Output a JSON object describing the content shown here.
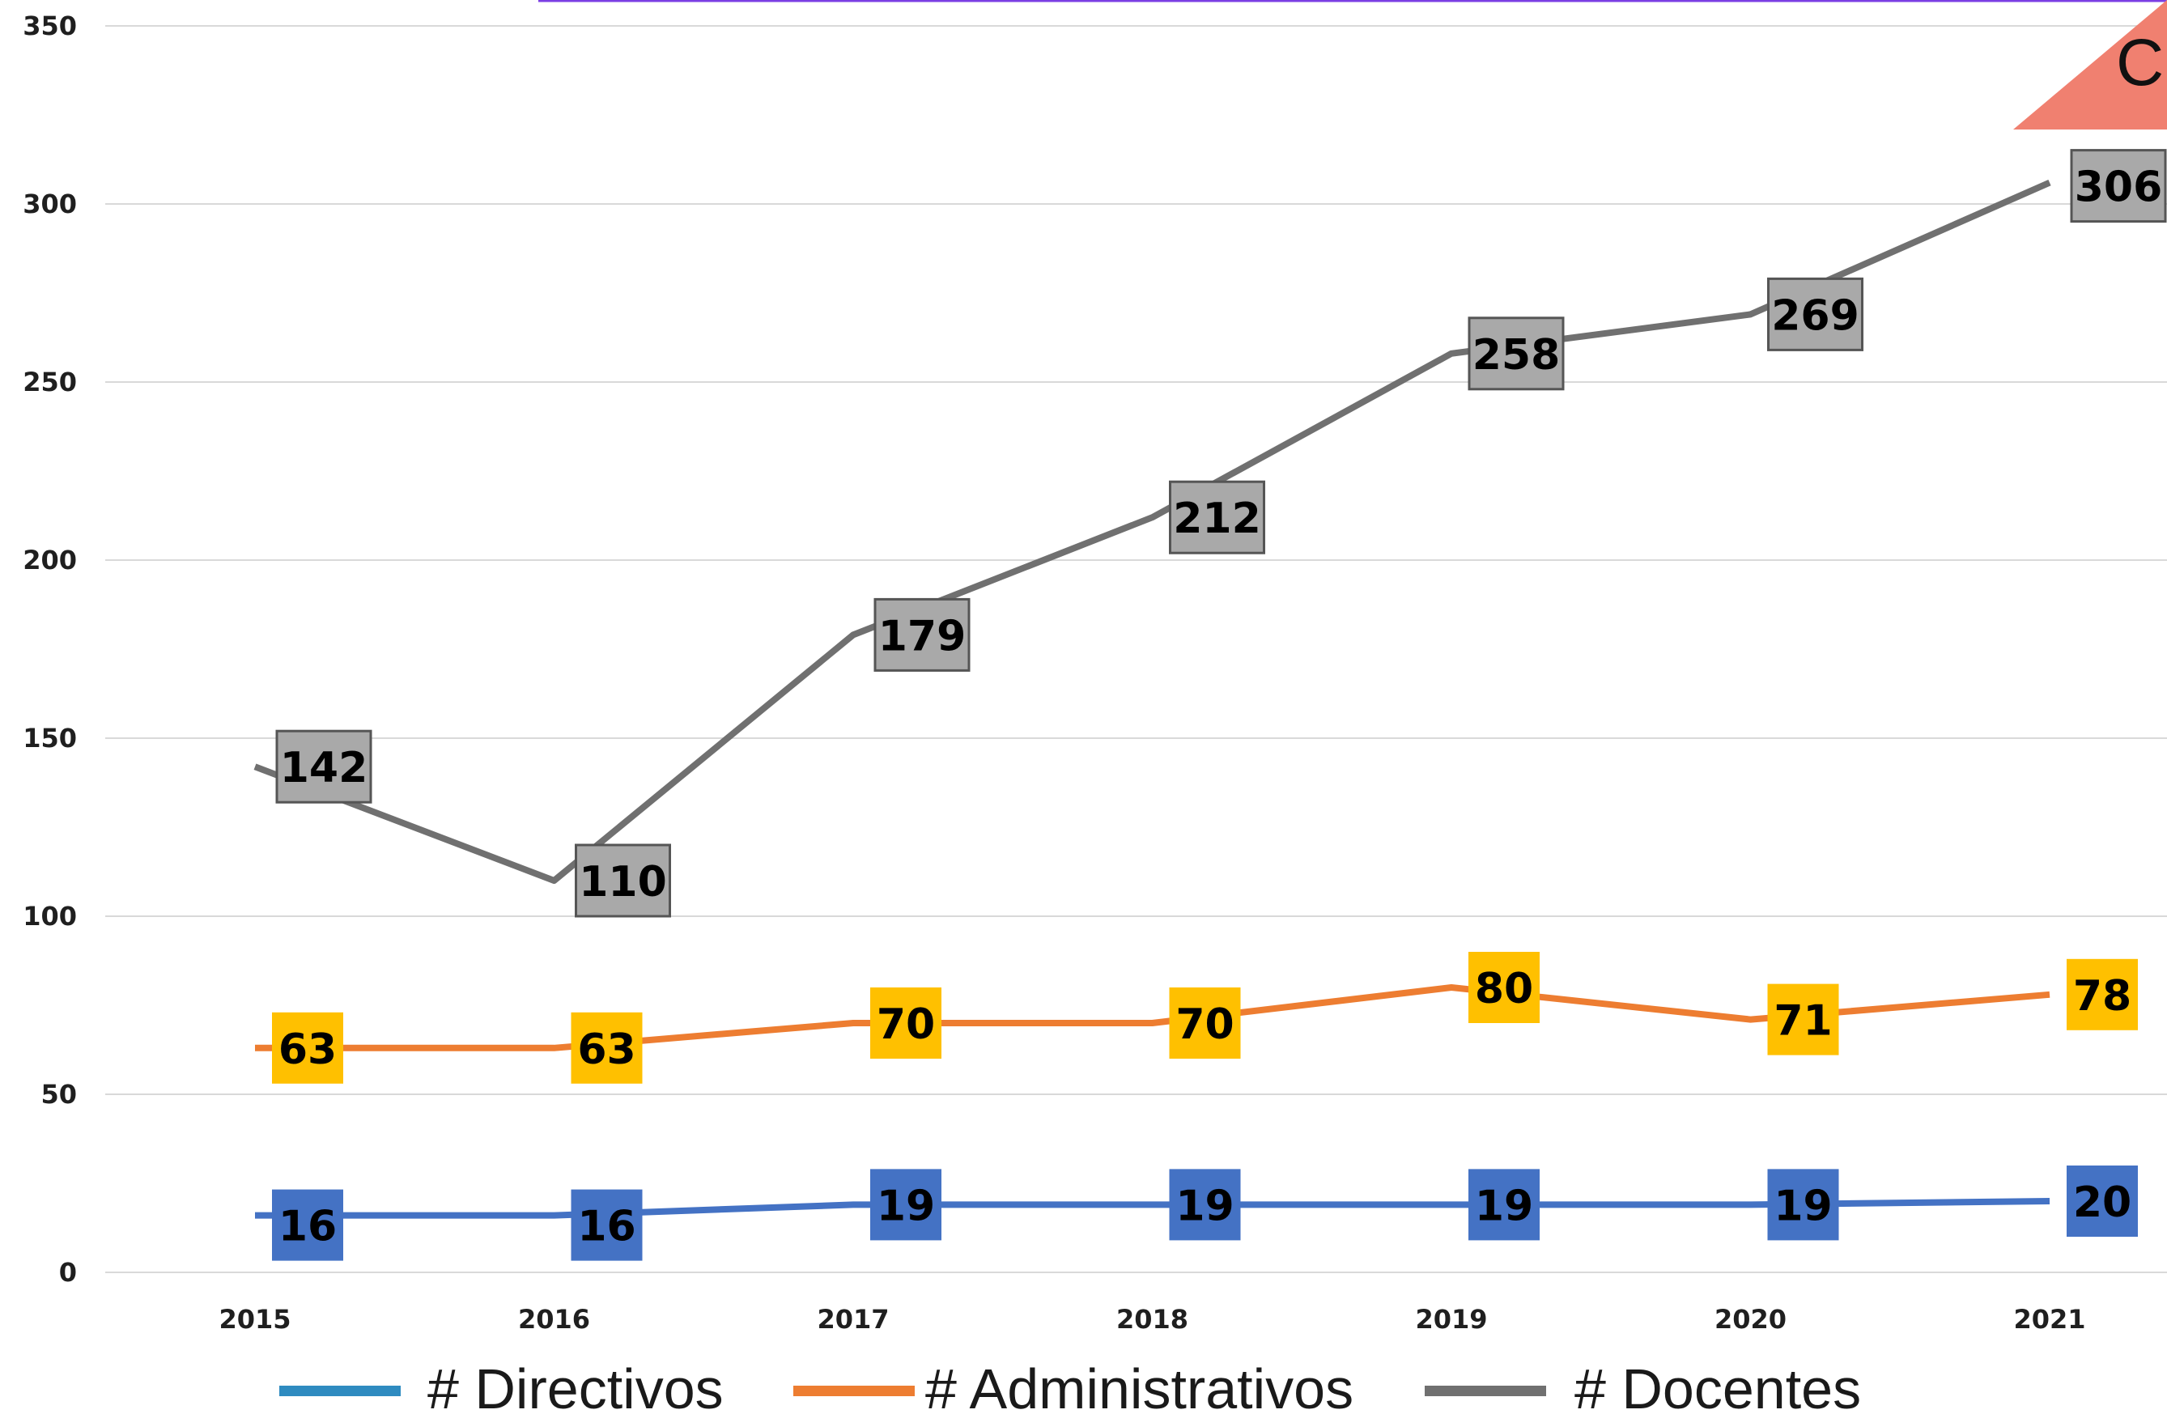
{
  "chart_data": {
    "type": "line",
    "title": "",
    "xlabel": "",
    "ylabel": "",
    "categories": [
      "2015",
      "2016",
      "2017",
      "2018",
      "2019",
      "2020",
      "2021"
    ],
    "y_ticks": [
      "0",
      "50",
      "100",
      "150",
      "200",
      "250",
      "300",
      "350"
    ],
    "ylim": [
      0,
      350
    ],
    "grid": "horizontal",
    "legend_position": "bottom",
    "series": [
      {
        "name": "# Directivos",
        "values": [
          16,
          16,
          19,
          19,
          19,
          19,
          20
        ],
        "line_color": "#4472c4",
        "legend_color": "#2e8bc0",
        "label_bg": "#4472c4"
      },
      {
        "name": "# Administrativos",
        "values": [
          63,
          63,
          70,
          70,
          80,
          71,
          78
        ],
        "line_color": "#ed7d31",
        "legend_color": "#ed7d31",
        "label_bg": "#ffc000"
      },
      {
        "name": "# Docentes",
        "values": [
          142,
          110,
          179,
          212,
          258,
          269,
          306
        ],
        "line_color": "#707070",
        "legend_color": "#707070",
        "label_bg": "#a9a9a9"
      }
    ]
  },
  "corner_badge": {
    "text": "C",
    "color": "#f08070"
  },
  "top_rule_color": "#7b3fe4"
}
